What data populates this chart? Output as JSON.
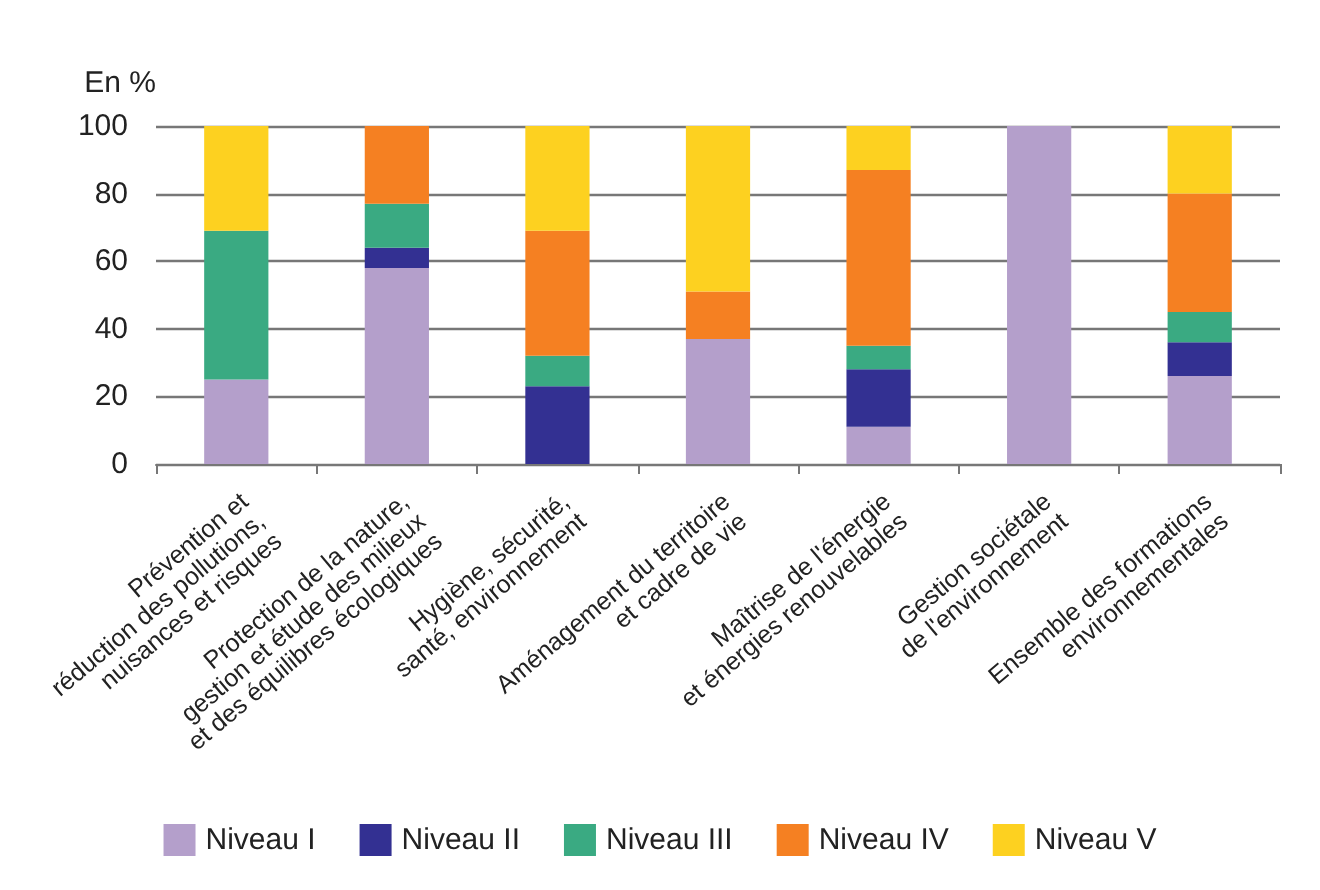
{
  "chart_data": {
    "type": "bar",
    "stacked": true,
    "ylabel": "En %",
    "categories": [
      "Prévention et\nréduction des pollutions,\nnuisances et risques",
      "Protection de la nature,\ngestion et étude des milieux\net des équilibres écologiques",
      "Hygiène, sécurité,\nsanté, environnement",
      "Aménagement du territoire\net cadre de vie",
      "Maîtrise de l'énergie\net énergies renouvelables",
      "Gestion sociétale\nde l'environnement",
      "Ensemble des formations\nenvironnementales"
    ],
    "series": [
      {
        "name": "Niveau I",
        "color": "#b49fcb",
        "values": [
          25,
          58,
          null,
          37,
          11,
          100,
          26
        ]
      },
      {
        "name": "Niveau II",
        "color": "#333092",
        "values": [
          null,
          6,
          23,
          null,
          17,
          null,
          10
        ]
      },
      {
        "name": "Niveau III",
        "color": "#3aaa82",
        "values": [
          44,
          13,
          9,
          null,
          7,
          null,
          9
        ]
      },
      {
        "name": "Niveau IV",
        "color": "#f58022",
        "values": [
          null,
          23,
          37,
          14,
          52,
          null,
          35
        ]
      },
      {
        "name": "Niveau V",
        "color": "#fdd120",
        "values": [
          31,
          null,
          31,
          49,
          13,
          null,
          20
        ]
      }
    ],
    "ylim": [
      0,
      100
    ],
    "yticks": [
      0,
      20,
      40,
      60,
      80,
      100
    ],
    "grid": "y",
    "legend": "bottom"
  }
}
